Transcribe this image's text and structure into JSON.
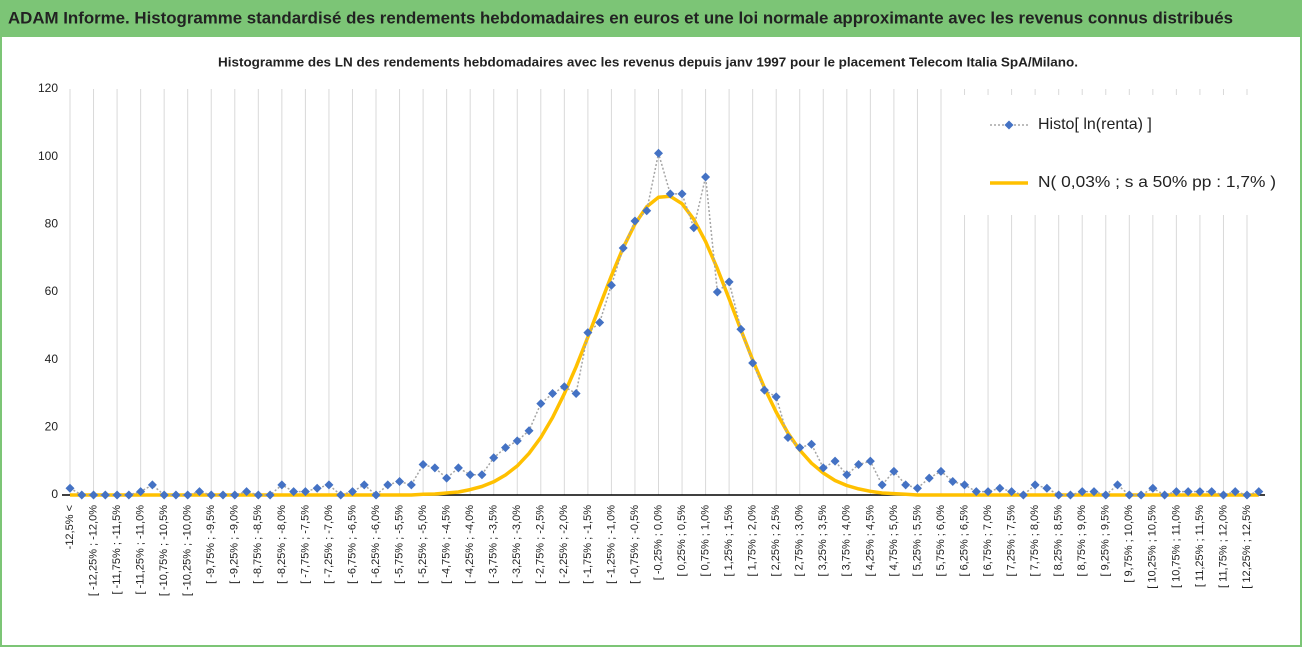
{
  "header": {
    "title": "ADAM Informe. Histogramme standardisé des rendements hebdomadaires en euros et une loi normale approximante avec les revenus connus distribués"
  },
  "chart_data": {
    "type": "line",
    "title": "Histogramme des LN des rendements hebdomadaires avec les revenus depuis janv 1997 pour le placement Telecom Italia SpA/Milano.",
    "categories": [
      "-12,5% <",
      null,
      "[ -12,25% ; -12,0%",
      null,
      "[ -11,75% ; -11,5%",
      null,
      "[ -11,25% ; -11,0%",
      null,
      "[ -10,75% ; -10,5%",
      null,
      "[ -10,25% ; -10,0%",
      null,
      "[ -9,75% ; -9,5%",
      null,
      "[ -9,25% ; -9,0%",
      null,
      "[ -8,75% ; -8,5%",
      null,
      "[ -8,25% ; -8,0%",
      null,
      "[ -7,75% ; -7,5%",
      null,
      "[ -7,25% ; -7,0%",
      null,
      "[ -6,75% ; -6,5%",
      null,
      "[ -6,25% ; -6,0%",
      null,
      "[ -5,75% ; -5,5%",
      null,
      "[ -5,25% ; -5,0%",
      null,
      "[ -4,75% ; -4,5%",
      null,
      "[ -4,25% ; -4,0%",
      null,
      "[ -3,75% ; -3,5%",
      null,
      "[ -3,25% ; -3,0%",
      null,
      "[ -2,75% ; -2,5%",
      null,
      "[ -2,25% ; -2,0%",
      null,
      "[ -1,75% ; -1,5%",
      null,
      "[ -1,25% ; -1,0%",
      null,
      "[ -0,75% ; -0,5%",
      null,
      "[ -0,25% ; 0,0%",
      null,
      "[ 0,25% ; 0,5%",
      null,
      "[ 0,75% ; 1,0%",
      null,
      "[ 1,25% ; 1,5%",
      null,
      "[ 1,75% ; 2,0%",
      null,
      "[ 2,25% ; 2,5%",
      null,
      "[ 2,75% ; 3,0%",
      null,
      "[ 3,25% ; 3,5%",
      null,
      "[ 3,75% ; 4,0%",
      null,
      "[ 4,25% ; 4,5%",
      null,
      "[ 4,75% ; 5,0%",
      null,
      "[ 5,25% ; 5,5%",
      null,
      "[ 5,75% ; 6,0%",
      null,
      "[ 6,25% ; 6,5%",
      null,
      "[ 6,75% ; 7,0%",
      null,
      "[ 7,25% ; 7,5%",
      null,
      "[ 7,75% ; 8,0%",
      null,
      "[ 8,25% ; 8,5%",
      null,
      "[ 8,75% ; 9,0%",
      null,
      "[ 9,25% ; 9,5%",
      null,
      "[ 9,75% ; 10,0%",
      null,
      "[ 10,25% ; 10,5%",
      null,
      "[ 10,75% ; 11,0%",
      null,
      "[ 11,25% ; 11,5%",
      null,
      "[ 11,75% ; 12,0%",
      null,
      "[ 12,25% ; 12,5%",
      null
    ],
    "series": [
      {
        "name": "Histo[ ln(renta) ]",
        "color": "#4472c4",
        "line_color": "#a5a5a5",
        "values": [
          2,
          0,
          0,
          0,
          0,
          0,
          1,
          3,
          0,
          0,
          0,
          1,
          0,
          0,
          0,
          1,
          0,
          0,
          3,
          1,
          1,
          2,
          3,
          0,
          1,
          3,
          0,
          3,
          4,
          3,
          9,
          8,
          5,
          8,
          6,
          6,
          11,
          14,
          16,
          19,
          27,
          30,
          32,
          30,
          48,
          51,
          62,
          73,
          81,
          84,
          101,
          89,
          89,
          79,
          94,
          60,
          63,
          49,
          39,
          31,
          29,
          17,
          14,
          15,
          8,
          10,
          6,
          9,
          10,
          3,
          7,
          3,
          2,
          5,
          7,
          4,
          3,
          1,
          1,
          2,
          1,
          0,
          3,
          2,
          0,
          0,
          1,
          1,
          0,
          3,
          0,
          0,
          2,
          0,
          1,
          1,
          1,
          1,
          0,
          1,
          0,
          1
        ]
      },
      {
        "name": "N( 0,03% ; s a 50% pp : 1,7% )",
        "color": "#ffc000",
        "values": [
          0,
          0,
          0,
          0,
          0,
          0,
          0,
          0,
          0,
          0,
          0,
          0,
          0,
          0,
          0,
          0,
          0,
          0,
          0,
          0,
          0,
          0,
          0,
          0,
          0,
          0,
          0,
          0,
          0,
          0,
          0.2,
          0.3,
          0.6,
          0.9,
          1.6,
          2.5,
          3.9,
          5.9,
          8.6,
          12.3,
          17.0,
          22.9,
          29.9,
          37.9,
          46.7,
          55.8,
          64.8,
          73.1,
          80.1,
          85.2,
          88.0,
          88.3,
          86.1,
          81.5,
          74.9,
          66.9,
          58.0,
          48.8,
          39.9,
          31.7,
          24.5,
          18.3,
          13.3,
          9.4,
          6.5,
          4.3,
          2.8,
          1.8,
          1.1,
          0.6,
          0.4,
          0.2,
          0,
          0,
          0,
          0,
          0,
          0,
          0,
          0,
          0,
          0,
          0,
          0,
          0,
          0,
          0,
          0,
          0,
          0,
          0,
          0,
          0,
          0,
          0,
          0,
          0,
          0,
          0,
          0,
          0,
          0
        ]
      }
    ],
    "ylim": [
      0,
      120
    ],
    "yticks": [
      0,
      20,
      40,
      60,
      80,
      100,
      120
    ],
    "grid": false,
    "x_grid": true,
    "legend": "top-right"
  }
}
